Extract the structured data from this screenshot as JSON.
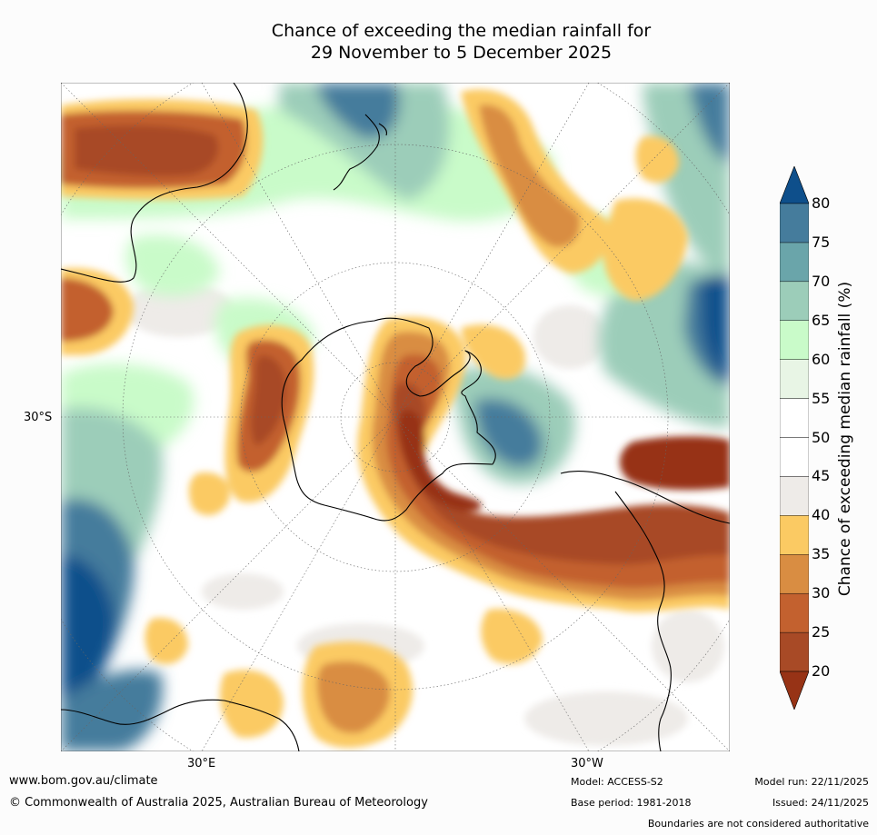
{
  "title_line1": "Chance of exceeding the median rainfall for",
  "title_line2": "29 November to 5 December 2025",
  "axis_labels": {
    "lat_30s": "30°S",
    "lon_30e": "30°E",
    "lon_30w": "30°W"
  },
  "colorbar": {
    "label": "Chance of exceeding median rainfall (%)",
    "ticks": [
      "20",
      "25",
      "30",
      "35",
      "40",
      "45",
      "50",
      "55",
      "60",
      "65",
      "70",
      "75",
      "80"
    ],
    "colors": [
      "#973316",
      "#a84a26",
      "#c3612f",
      "#d98d42",
      "#fbca63",
      "#eeebe8",
      "#ffffff",
      "#ffffff",
      "#e8f5e5",
      "#c9fbc9",
      "#9ccdb9",
      "#6aa5aa",
      "#457c9c",
      "#0e4f8b"
    ]
  },
  "footer": {
    "website": "www.bom.gov.au/climate",
    "copyright": "© Commonwealth of Australia 2025, Australian Bureau of Meteorology",
    "model": "Model: ACCESS-S2",
    "base_period": "Base period: 1981-2018",
    "model_run": "Model run: 22/11/2025",
    "issued": "Issued: 24/11/2025",
    "disclaimer": "Boundaries are not considered authoritative"
  }
}
